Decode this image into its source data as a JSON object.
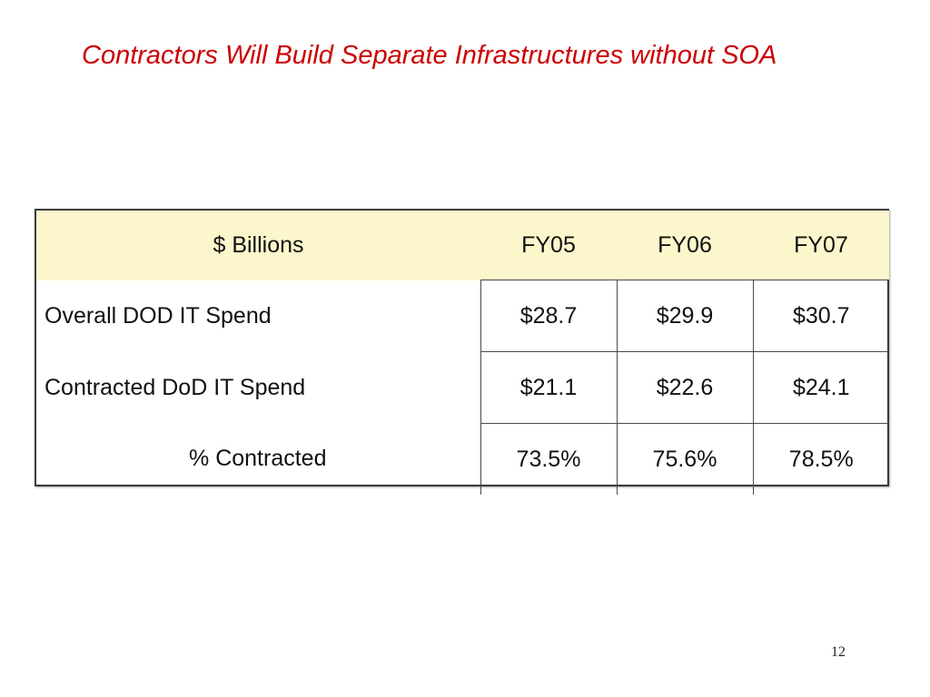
{
  "slide": {
    "title": "Contractors Will Build Separate Infrastructures without SOA",
    "page_number": "12"
  },
  "table": {
    "header": {
      "label": "$ Billions",
      "years": [
        "FY05",
        "FY06",
        "FY07"
      ]
    },
    "rows": [
      {
        "label": "Overall DOD IT Spend",
        "values": [
          "$28.7",
          "$29.9",
          "$30.7"
        ]
      },
      {
        "label": "Contracted DoD IT Spend",
        "values": [
          "$21.1",
          "$22.6",
          "$24.1"
        ]
      },
      {
        "label": "% Contracted",
        "values": [
          "73.5%",
          "75.6%",
          "78.5%"
        ]
      }
    ],
    "colors": {
      "title": "#cc0000",
      "header_background": "#fcf6cc",
      "border": "#3a3a3a"
    }
  }
}
